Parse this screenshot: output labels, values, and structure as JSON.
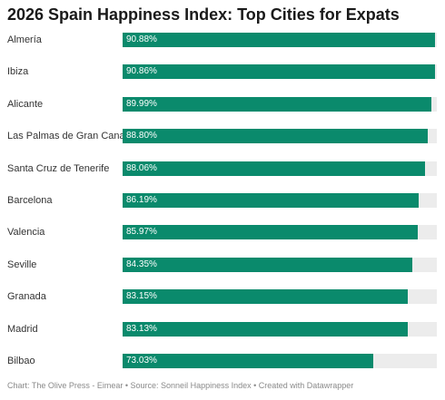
{
  "chart_data": {
    "type": "bar",
    "orientation": "horizontal",
    "title": "2026 Spain Happiness Index: Top Cities for Expats",
    "categories": [
      "Almería",
      "Ibiza",
      "Alicante",
      "Las Palmas de Gran Canaria",
      "Santa Cruz de Tenerife",
      "Barcelona",
      "Valencia",
      "Seville",
      "Granada",
      "Madrid",
      "Bilbao"
    ],
    "values": [
      90.88,
      90.86,
      89.99,
      88.8,
      88.06,
      86.19,
      85.97,
      84.35,
      83.15,
      83.13,
      73.03
    ],
    "value_labels": [
      "90.88%",
      "90.86%",
      "89.99%",
      "88.80%",
      "88.06%",
      "86.19%",
      "85.97%",
      "84.35%",
      "83.15%",
      "83.13%",
      "73.03%"
    ],
    "xlim": [
      0,
      91.5
    ],
    "grid": false,
    "colors": {
      "bar": "#0a8a6c",
      "track": "#ececec"
    },
    "footer": "Chart: The Olive Press - Eimear • Source: Sonneil Happiness Index • Created with Datawrapper"
  }
}
